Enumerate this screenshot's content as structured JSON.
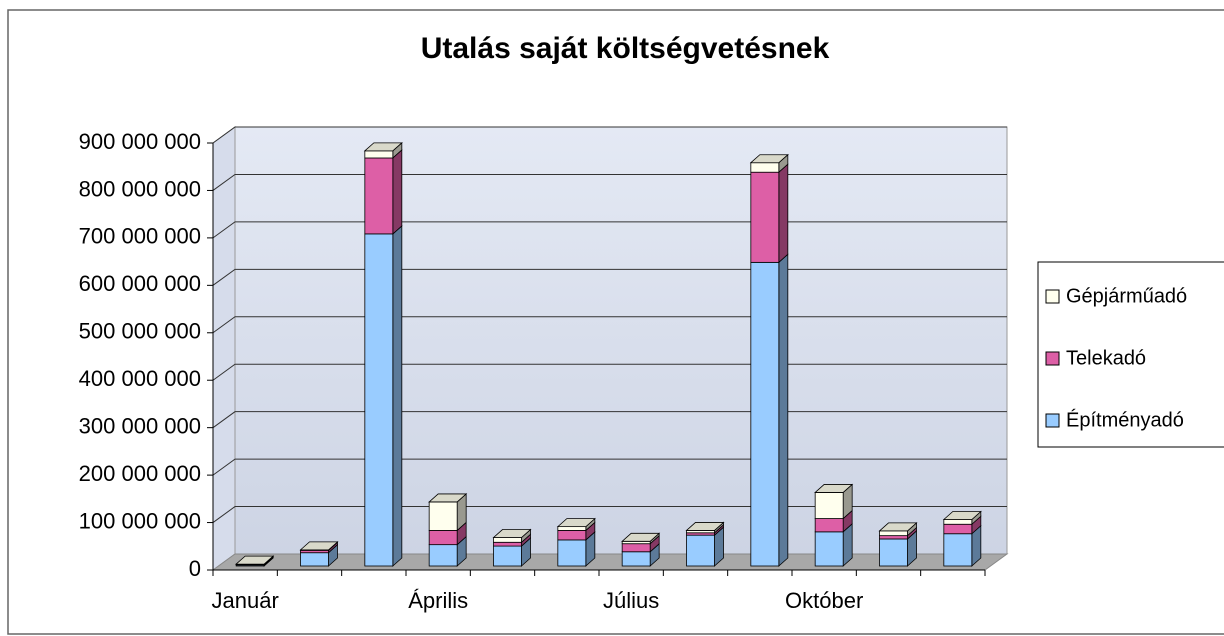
{
  "chart_data": {
    "type": "bar3d-stacked",
    "title": "Utalás saját költségvetésnek",
    "categories": [
      "Január",
      null,
      null,
      "Április",
      null,
      null,
      "Július",
      null,
      null,
      "Október",
      null,
      null
    ],
    "series": [
      {
        "name": "Építményadó",
        "color": "#99ccff",
        "values": [
          2000000,
          28000000,
          700000000,
          45000000,
          42000000,
          55000000,
          30000000,
          65000000,
          640000000,
          72000000,
          57000000,
          68000000
        ]
      },
      {
        "name": "Telekadó",
        "color": "#dd5fa6",
        "values": [
          1000000,
          5000000,
          160000000,
          30000000,
          8000000,
          20000000,
          17000000,
          5000000,
          190000000,
          28000000,
          7000000,
          20000000
        ]
      },
      {
        "name": "Gépjárműadó",
        "color": "#ffffee",
        "values": [
          1000000,
          1000000,
          15000000,
          60000000,
          10000000,
          8000000,
          5000000,
          5000000,
          20000000,
          55000000,
          10000000,
          10000000
        ]
      }
    ],
    "ylim": [
      0,
      900000000
    ],
    "yticks": [
      0,
      {
        "value": 100000000,
        "label": "100 000 000"
      },
      {
        "value": 200000000,
        "label": "200 000 000"
      },
      {
        "value": 300000000,
        "label": "300 000 000"
      },
      {
        "value": 400000000,
        "label": "400 000 000"
      },
      {
        "value": 500000000,
        "label": "500 000 000"
      },
      {
        "value": 600000000,
        "label": "600 000 000"
      },
      {
        "value": 700000000,
        "label": "700 000 000"
      },
      {
        "value": 800000000,
        "label": "800 000 000"
      },
      {
        "value": 900000000,
        "label": "900 000 000"
      }
    ],
    "grid": true,
    "legend": "right"
  }
}
